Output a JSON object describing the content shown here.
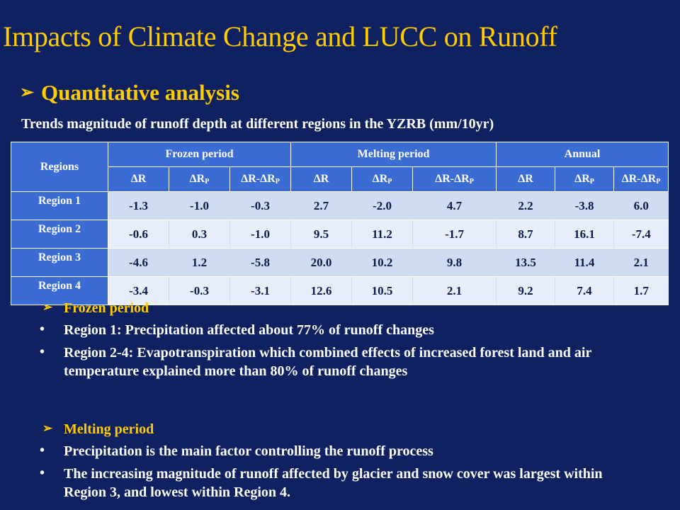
{
  "title": "Impacts of Climate Change and LUCC on Runoff",
  "section": {
    "arrow": "➢",
    "label": "Quantitative analysis"
  },
  "caption": "Trends magnitude of runoff depth at different regions in the YZRB (mm/10yr)",
  "table": {
    "regions_header": "Regions",
    "groups": [
      "Frozen period",
      "Melting period",
      "Annual"
    ],
    "subheaders": [
      {
        "base": "ΔR",
        "sub": ""
      },
      {
        "base": "ΔR",
        "sub": "P"
      },
      {
        "base": "ΔR-ΔR",
        "sub": "P"
      },
      {
        "base": "ΔR",
        "sub": ""
      },
      {
        "base": "ΔR",
        "sub": "P"
      },
      {
        "base": "ΔR-ΔR",
        "sub": "P"
      },
      {
        "base": "ΔR",
        "sub": ""
      },
      {
        "base": "ΔR",
        "sub": "P"
      },
      {
        "base": "ΔR-ΔR",
        "sub": "P"
      }
    ],
    "rows": [
      {
        "region": "Region 1",
        "values": [
          "-1.3",
          "-1.0",
          "-0.3",
          "2.7",
          "-2.0",
          "4.7",
          "2.2",
          "-3.8",
          "6.0"
        ]
      },
      {
        "region": "Region 2",
        "values": [
          "-0.6",
          "0.3",
          "-1.0",
          "9.5",
          "11.2",
          "-1.7",
          "8.7",
          "16.1",
          "-7.4"
        ]
      },
      {
        "region": "Region 3",
        "values": [
          "-4.6",
          "1.2",
          "-5.8",
          "20.0",
          "10.2",
          "9.8",
          "13.5",
          "11.4",
          "2.1"
        ]
      },
      {
        "region": "Region 4",
        "values": [
          "-3.4",
          "-0.3",
          "-3.1",
          "12.6",
          "10.5",
          "2.1",
          "9.2",
          "7.4",
          "1.7"
        ]
      }
    ]
  },
  "frozen": {
    "arrow": "➢",
    "heading": "Frozen period",
    "bullets": [
      "Region 1: Precipitation affected about 77% of runoff changes",
      "Region 2-4: Evapotranspiration which combined effects of increased forest land and air temperature explained more than 80% of runoff changes"
    ]
  },
  "melting": {
    "arrow": "➢",
    "heading": "Melting period",
    "bullets": [
      "Precipitation is the main factor controlling the runoff process",
      "The increasing magnitude of runoff affected by glacier and snow cover was largest within Region 3, and lowest within Region 4."
    ]
  }
}
